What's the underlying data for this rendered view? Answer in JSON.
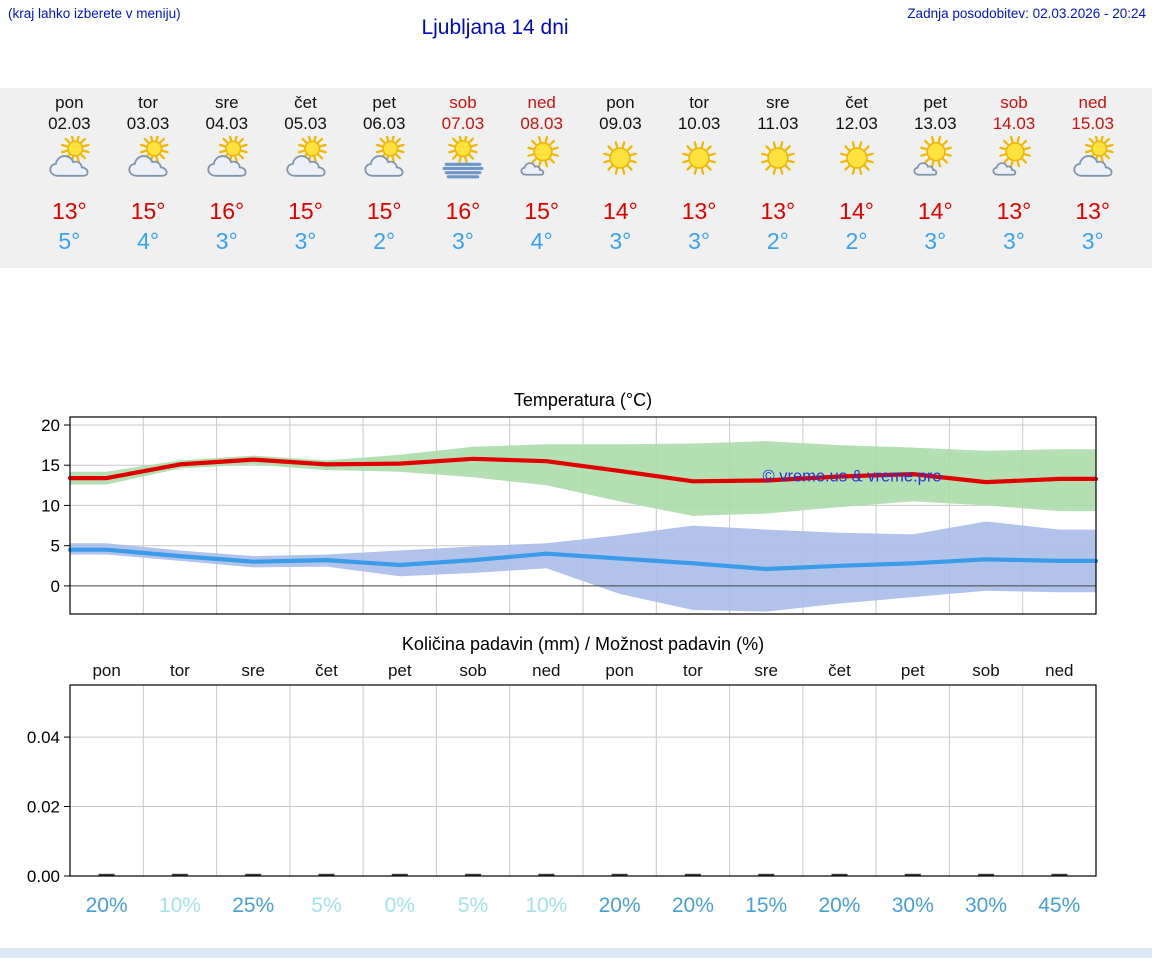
{
  "header": {
    "note": "(kraj lahko izberete v meniju)",
    "title": "Ljubljana 14 dni",
    "last_update": "Zadnja posodobitev: 02.03.2026 - 20:24"
  },
  "colors": {
    "accent_blue": "#0013cf",
    "title_blue": "#0008c8",
    "weekend_red": "#cc1111",
    "high_temp_red": "#e00000",
    "low_temp_blue": "#38a1f2",
    "strip_bg": "#f0f0f0",
    "prob_strong": "#45a0d6",
    "prob_light": "#a2e2ea",
    "watermark_blue": "#2b35cf"
  },
  "forecast": {
    "days": [
      {
        "name": "pon",
        "date": "02.03",
        "weekend": false,
        "icon": "partly-cloudy",
        "high": "13°",
        "low": "5°"
      },
      {
        "name": "tor",
        "date": "03.03",
        "weekend": false,
        "icon": "partly-cloudy",
        "high": "15°",
        "low": "4°"
      },
      {
        "name": "sre",
        "date": "04.03",
        "weekend": false,
        "icon": "partly-cloudy",
        "high": "16°",
        "low": "3°"
      },
      {
        "name": "čet",
        "date": "05.03",
        "weekend": false,
        "icon": "partly-cloudy",
        "high": "15°",
        "low": "3°"
      },
      {
        "name": "pet",
        "date": "06.03",
        "weekend": false,
        "icon": "partly-cloudy",
        "high": "15°",
        "low": "2°"
      },
      {
        "name": "sob",
        "date": "07.03",
        "weekend": true,
        "icon": "fog",
        "high": "16°",
        "low": "3°"
      },
      {
        "name": "ned",
        "date": "08.03",
        "weekend": true,
        "icon": "mostly-sunny",
        "high": "15°",
        "low": "4°"
      },
      {
        "name": "pon",
        "date": "09.03",
        "weekend": false,
        "icon": "sunny",
        "high": "14°",
        "low": "3°"
      },
      {
        "name": "tor",
        "date": "10.03",
        "weekend": false,
        "icon": "sunny",
        "high": "13°",
        "low": "3°"
      },
      {
        "name": "sre",
        "date": "11.03",
        "weekend": false,
        "icon": "sunny",
        "high": "13°",
        "low": "2°"
      },
      {
        "name": "čet",
        "date": "12.03",
        "weekend": false,
        "icon": "sunny",
        "high": "14°",
        "low": "2°"
      },
      {
        "name": "pet",
        "date": "13.03",
        "weekend": false,
        "icon": "mostly-sunny",
        "high": "14°",
        "low": "3°"
      },
      {
        "name": "sob",
        "date": "14.03",
        "weekend": true,
        "icon": "mostly-sunny",
        "high": "13°",
        "low": "3°"
      },
      {
        "name": "ned",
        "date": "15.03",
        "weekend": true,
        "icon": "partly-cloudy",
        "high": "13°",
        "low": "3°"
      }
    ]
  },
  "chart_data": [
    {
      "type": "line",
      "title": "Temperatura (°C)",
      "x": [
        "pon 02.03",
        "tor 03.03",
        "sre 04.03",
        "čet 05.03",
        "pet 06.03",
        "sob 07.03",
        "ned 08.03",
        "pon 09.03",
        "tor 10.03",
        "sre 11.03",
        "čet 12.03",
        "pet 13.03",
        "sob 14.03",
        "ned 15.03"
      ],
      "ylim": [
        -3.5,
        21
      ],
      "yticks": [
        0,
        5,
        10,
        15,
        20
      ],
      "grid": true,
      "legend": "none",
      "watermark": "© vreme.us & vreme.pro",
      "series": [
        {
          "name": "max-temperature",
          "color": "#e00000",
          "values": [
            13.4,
            15.1,
            15.7,
            15.1,
            15.2,
            15.8,
            15.5,
            14.3,
            13.0,
            13.1,
            13.6,
            13.9,
            12.9,
            13.3
          ]
        },
        {
          "name": "min-temperature",
          "color": "#3a9be8",
          "values": [
            4.5,
            3.7,
            3.0,
            3.2,
            2.6,
            3.2,
            4.0,
            3.4,
            2.8,
            2.1,
            2.5,
            2.8,
            3.3,
            3.1
          ]
        }
      ],
      "bands": [
        {
          "name": "max-temperature-range",
          "color": "#abdcab",
          "upper": [
            14.2,
            15.6,
            16.2,
            15.6,
            16.3,
            17.3,
            17.6,
            17.6,
            17.7,
            18.0,
            17.5,
            17.2,
            16.8,
            17.0
          ],
          "lower": [
            12.6,
            14.6,
            15.1,
            14.4,
            14.2,
            13.5,
            12.5,
            10.5,
            8.7,
            9.0,
            9.8,
            10.5,
            10.0,
            9.3
          ]
        },
        {
          "name": "min-temperature-range",
          "color": "#a8bce8",
          "upper": [
            5.3,
            4.4,
            3.7,
            3.9,
            4.4,
            4.9,
            5.3,
            6.3,
            7.5,
            7.0,
            6.6,
            6.4,
            8.0,
            7.0
          ],
          "lower": [
            3.9,
            3.1,
            2.3,
            2.4,
            1.2,
            1.6,
            2.2,
            -1.0,
            -3.0,
            -3.2,
            -2.2,
            -1.4,
            -0.6,
            -0.8
          ]
        }
      ]
    },
    {
      "type": "bar",
      "title": "Količina padavin (mm) / Možnost padavin (%)",
      "categories": [
        "pon",
        "tor",
        "sre",
        "čet",
        "pet",
        "sob",
        "ned",
        "pon",
        "tor",
        "sre",
        "čet",
        "pet",
        "sob",
        "ned"
      ],
      "values": [
        0,
        0,
        0,
        0,
        0,
        0,
        0,
        0,
        0,
        0,
        0,
        0,
        0,
        0
      ],
      "ylim": [
        0,
        0.055
      ],
      "yticks": [
        0,
        0.02,
        0.04
      ],
      "grid": true,
      "probabilities": [
        {
          "label": "20%",
          "level": "strong"
        },
        {
          "label": "10%",
          "level": "light"
        },
        {
          "label": "25%",
          "level": "strong"
        },
        {
          "label": "5%",
          "level": "light"
        },
        {
          "label": "0%",
          "level": "light"
        },
        {
          "label": "5%",
          "level": "light"
        },
        {
          "label": "10%",
          "level": "light"
        },
        {
          "label": "20%",
          "level": "strong"
        },
        {
          "label": "20%",
          "level": "strong"
        },
        {
          "label": "15%",
          "level": "strong"
        },
        {
          "label": "20%",
          "level": "strong"
        },
        {
          "label": "30%",
          "level": "strong"
        },
        {
          "label": "30%",
          "level": "strong"
        },
        {
          "label": "45%",
          "level": "strong"
        }
      ]
    }
  ]
}
